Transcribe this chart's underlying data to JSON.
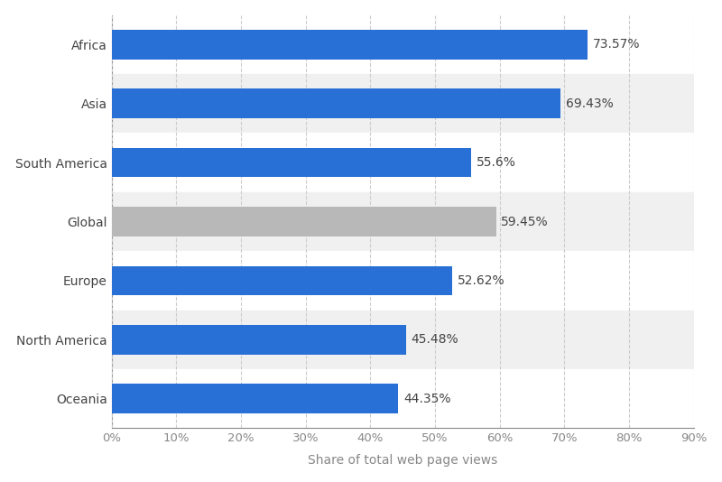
{
  "categories": [
    "Africa",
    "Asia",
    "South America",
    "Global",
    "Europe",
    "North America",
    "Oceania"
  ],
  "values": [
    73.57,
    69.43,
    55.6,
    59.45,
    52.62,
    45.48,
    44.35
  ],
  "bar_colors": [
    "#2970d6",
    "#2970d6",
    "#2970d6",
    "#b8b8b8",
    "#2970d6",
    "#2970d6",
    "#2970d6"
  ],
  "label_texts": [
    "73.57%",
    "69.43%",
    "55.6%",
    "59.45%",
    "52.62%",
    "45.48%",
    "44.35%"
  ],
  "xlabel": "Share of total web page views",
  "xlim": [
    0,
    90
  ],
  "xticks": [
    0,
    10,
    20,
    30,
    40,
    50,
    60,
    70,
    80,
    90
  ],
  "background_color": "#ffffff",
  "plot_bg_color": "#ffffff",
  "stripe_color": "#f0f0f0",
  "grid_color": "#cccccc",
  "bar_height": 0.5,
  "label_fontsize": 10,
  "tick_fontsize": 9.5,
  "xlabel_fontsize": 10,
  "ytick_fontsize": 10
}
